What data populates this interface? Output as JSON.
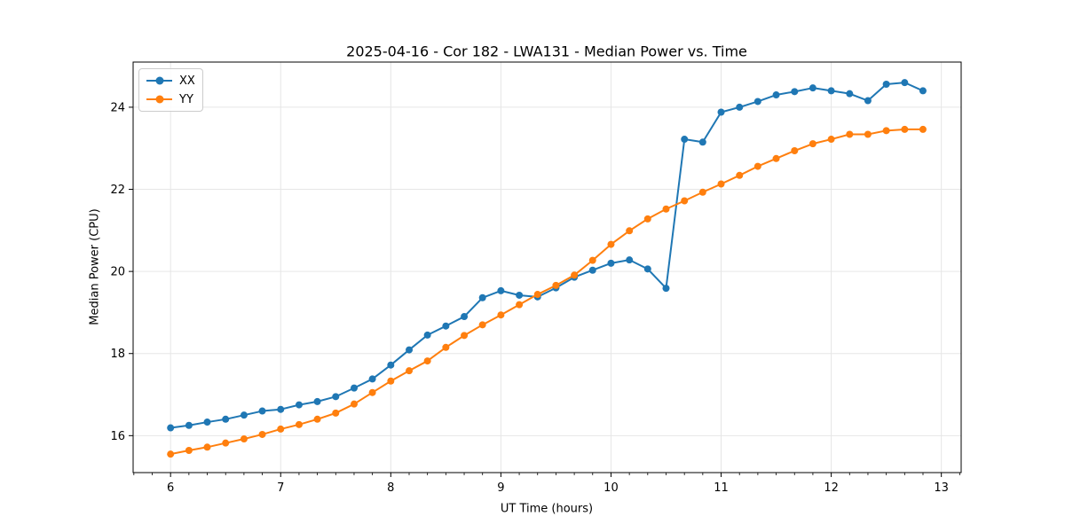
{
  "chart_data": {
    "type": "line",
    "title": "2025-04-16 - Cor 182 - LWA131 - Median Power vs. Time",
    "xlabel": "UT Time (hours)",
    "ylabel": "Median Power (CPU)",
    "xlim": [
      5.66,
      13.18
    ],
    "ylim": [
      15.1,
      25.1
    ],
    "xticks": [
      6,
      7,
      8,
      9,
      10,
      11,
      12,
      13
    ],
    "yticks": [
      16,
      18,
      20,
      22,
      24
    ],
    "x_minor_step": 0.1667,
    "grid": true,
    "legend_position": "upper left",
    "grid_color": "#e6e6e6",
    "x": [
      6.0,
      6.167,
      6.333,
      6.5,
      6.667,
      6.833,
      7.0,
      7.167,
      7.333,
      7.5,
      7.667,
      7.833,
      8.0,
      8.167,
      8.333,
      8.5,
      8.667,
      8.833,
      9.0,
      9.167,
      9.333,
      9.5,
      9.667,
      9.833,
      10.0,
      10.167,
      10.333,
      10.5,
      10.667,
      10.833,
      11.0,
      11.167,
      11.333,
      11.5,
      11.667,
      11.833,
      12.0,
      12.167,
      12.333,
      12.5,
      12.667,
      12.833
    ],
    "series": [
      {
        "name": "XX",
        "color": "#1f77b4",
        "values": [
          16.19,
          16.25,
          16.33,
          16.4,
          16.5,
          16.6,
          16.64,
          16.75,
          16.83,
          16.95,
          17.16,
          17.38,
          17.72,
          18.09,
          18.45,
          18.67,
          18.9,
          19.36,
          19.53,
          19.42,
          19.38,
          19.6,
          19.86,
          20.03,
          20.2,
          20.28,
          20.06,
          19.59,
          23.22,
          23.15,
          23.88,
          24.0,
          24.14,
          24.3,
          24.38,
          24.47,
          24.4,
          24.33,
          24.16,
          24.56,
          24.6,
          24.4
        ]
      },
      {
        "name": "YY",
        "color": "#ff7f0e",
        "values": [
          15.55,
          15.64,
          15.72,
          15.82,
          15.92,
          16.03,
          16.16,
          16.27,
          16.4,
          16.55,
          16.77,
          17.05,
          17.33,
          17.58,
          17.82,
          18.15,
          18.44,
          18.7,
          18.94,
          19.19,
          19.44,
          19.66,
          19.91,
          20.27,
          20.66,
          20.99,
          21.28,
          21.52,
          21.72,
          21.93,
          22.13,
          22.34,
          22.56,
          22.75,
          22.94,
          23.11,
          23.22,
          23.34,
          23.34,
          23.43,
          23.46,
          23.46
        ]
      }
    ]
  }
}
